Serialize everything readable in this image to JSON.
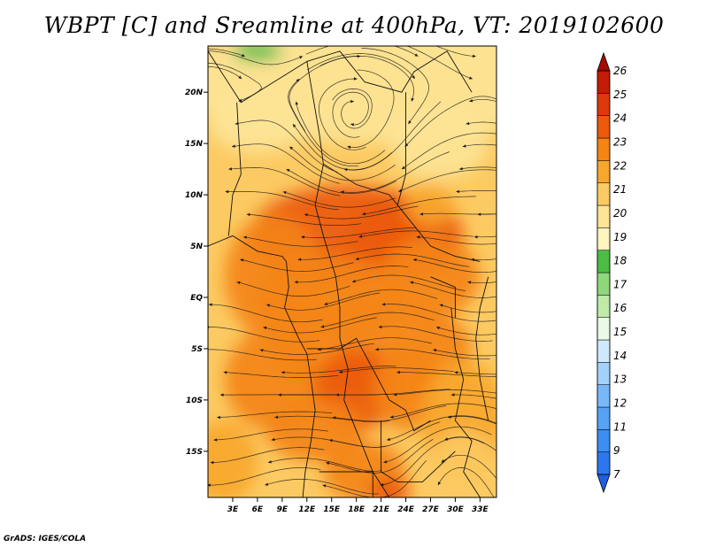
{
  "title": "WBPT [C] and Sreamline at 400hPa, VT: 2019102600",
  "credit": "GrADS: IGES/COLA",
  "chart_data": {
    "type": "heatmap",
    "title": "WBPT [C] and Sreamline at 400hPa, VT: 2019102600",
    "variable": "Wet-bulb potential temperature",
    "units": "C",
    "level": "400hPa",
    "valid_time": "2019102600",
    "overlay": "streamlines",
    "x_range_deg": [
      0,
      35
    ],
    "y_range_deg": [
      -19.5,
      24.5
    ],
    "lat_ticks": [
      {
        "value": 20,
        "label": "20N"
      },
      {
        "value": 15,
        "label": "15N"
      },
      {
        "value": 10,
        "label": "10N"
      },
      {
        "value": 5,
        "label": "5N"
      },
      {
        "value": 0,
        "label": "EQ"
      },
      {
        "value": -5,
        "label": "5S"
      },
      {
        "value": -10,
        "label": "10S"
      },
      {
        "value": -15,
        "label": "15S"
      }
    ],
    "lon_ticks": [
      {
        "value": 3,
        "label": "3E"
      },
      {
        "value": 6,
        "label": "6E"
      },
      {
        "value": 9,
        "label": "9E"
      },
      {
        "value": 12,
        "label": "12E"
      },
      {
        "value": 15,
        "label": "15E"
      },
      {
        "value": 18,
        "label": "18E"
      },
      {
        "value": 21,
        "label": "21E"
      },
      {
        "value": 24,
        "label": "24E"
      },
      {
        "value": 27,
        "label": "27E"
      },
      {
        "value": 30,
        "label": "30E"
      },
      {
        "value": 33,
        "label": "33E"
      }
    ],
    "colorbar": {
      "labels": [
        "7",
        "9",
        "11",
        "12",
        "13",
        "14",
        "15",
        "16",
        "17",
        "18",
        "19",
        "20",
        "21",
        "22",
        "23",
        "24",
        "25",
        "26"
      ],
      "colors": [
        "#1f5fe0",
        "#2b78ee",
        "#3c8ef2",
        "#57a2f5",
        "#78b8f8",
        "#a3d1fa",
        "#cfe9fc",
        "#eafae6",
        "#bfeaa8",
        "#8ed77a",
        "#4cbd44",
        "#fdf4bf",
        "#fde496",
        "#fcca62",
        "#f9a72c",
        "#f48414",
        "#ec5a0c",
        "#dc3a0a",
        "#c41c06",
        "#a30d04"
      ]
    }
  }
}
